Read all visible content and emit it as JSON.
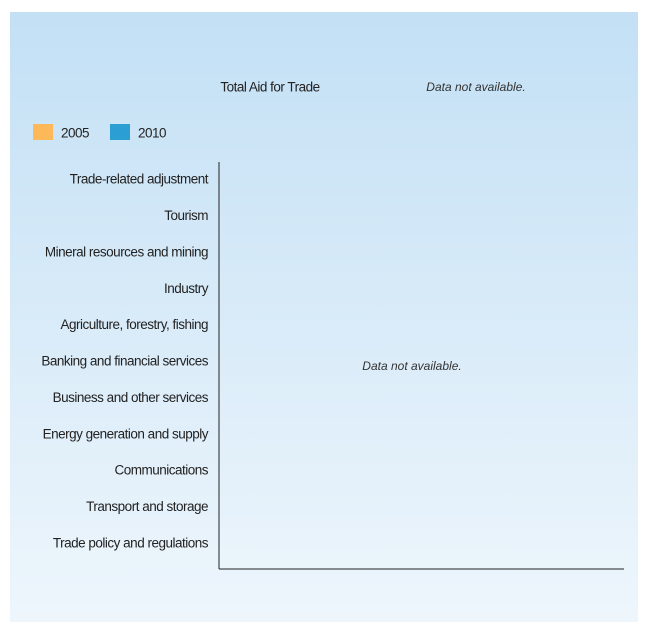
{
  "chart_data": {
    "type": "bar",
    "orientation": "horizontal",
    "title": "Total Aid for Trade",
    "title_note": "Data not available.",
    "annotation": "Data not available.",
    "categories": [
      "Trade-related adjustment",
      "Tourism",
      "Mineral resources and mining",
      "Industry",
      "Agriculture, forestry, fishing",
      "Banking and financial services",
      "Business and other services",
      "Energy generation and supply",
      "Communications",
      "Transport and storage",
      "Trade policy and regulations"
    ],
    "series": [
      {
        "name": "2005",
        "color": "#fdb859",
        "values": [
          null,
          null,
          null,
          null,
          null,
          null,
          null,
          null,
          null,
          null,
          null
        ]
      },
      {
        "name": "2010",
        "color": "#2b9fd3",
        "values": [
          null,
          null,
          null,
          null,
          null,
          null,
          null,
          null,
          null,
          null,
          null
        ]
      }
    ]
  }
}
